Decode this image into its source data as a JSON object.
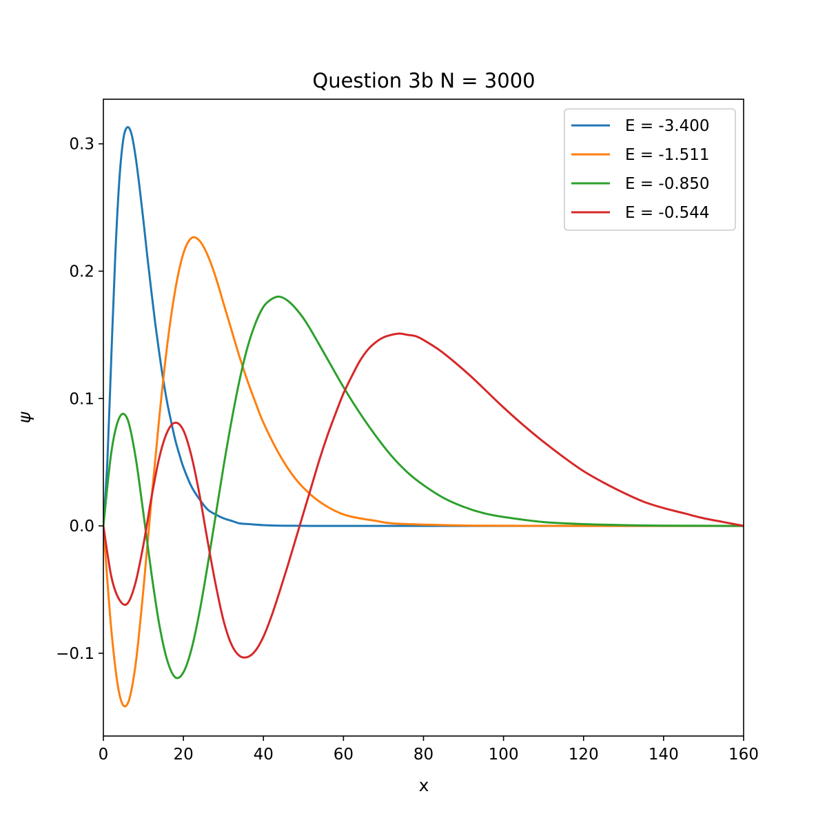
{
  "chart_data": {
    "type": "line",
    "title": "Question 3b N = 3000",
    "xlabel": "x",
    "ylabel": "ψ",
    "xlim": [
      0,
      160
    ],
    "ylim": [
      -0.165,
      0.335
    ],
    "xticks": [
      0,
      20,
      40,
      60,
      80,
      100,
      120,
      140,
      160
    ],
    "xtick_labels": [
      "0",
      "20",
      "40",
      "60",
      "80",
      "100",
      "120",
      "140",
      "160"
    ],
    "yticks": [
      -0.1,
      0.0,
      0.1,
      0.2,
      0.3
    ],
    "ytick_labels": [
      "−0.1",
      "0.0",
      "0.1",
      "0.2",
      "0.3"
    ],
    "grid": false,
    "legend_position": "top-right",
    "series": [
      {
        "name": "E = -3.400",
        "color": "#1f77b4",
        "x": [
          0,
          1,
          2,
          3,
          4,
          5,
          6,
          7,
          8,
          9,
          10,
          11,
          12,
          13,
          14,
          15,
          16,
          17,
          18,
          19,
          20,
          22,
          24,
          26,
          28,
          30,
          32,
          34,
          36,
          38,
          40,
          44,
          48,
          52,
          56,
          60,
          70,
          80,
          100,
          120,
          140,
          160
        ],
        "y": [
          0.0,
          0.051,
          0.134,
          0.214,
          0.272,
          0.304,
          0.313,
          0.308,
          0.291,
          0.267,
          0.24,
          0.211,
          0.184,
          0.158,
          0.135,
          0.114,
          0.096,
          0.081,
          0.067,
          0.056,
          0.046,
          0.031,
          0.021,
          0.013,
          0.009,
          0.006,
          0.004,
          0.002,
          0.0015,
          0.001,
          0.0006,
          0.0002,
          0.0001,
          0.0,
          0.0,
          0.0,
          0.0,
          0.0,
          0.0,
          0.0,
          0.0,
          0.0
        ]
      },
      {
        "name": "E = -1.511",
        "color": "#ff7f0e",
        "x": [
          0,
          2,
          4,
          6,
          8,
          10,
          12,
          14,
          16,
          18,
          20,
          22,
          24,
          26,
          28,
          30,
          32,
          34,
          36,
          38,
          40,
          44,
          48,
          52,
          56,
          60,
          64,
          68,
          72,
          80,
          90,
          100,
          120,
          140,
          160
        ],
        "y": [
          0.0,
          -0.082,
          -0.132,
          -0.14,
          -0.11,
          -0.05,
          0.02,
          0.086,
          0.143,
          0.186,
          0.214,
          0.226,
          0.224,
          0.213,
          0.196,
          0.175,
          0.154,
          0.133,
          0.114,
          0.097,
          0.081,
          0.056,
          0.037,
          0.024,
          0.015,
          0.009,
          0.006,
          0.004,
          0.002,
          0.001,
          0.0003,
          0.0001,
          0.0,
          0.0,
          0.0
        ]
      },
      {
        "name": "E = -0.850",
        "color": "#2ca02c",
        "x": [
          0,
          2,
          4,
          6,
          8,
          10,
          12,
          14,
          16,
          18,
          20,
          22,
          24,
          26,
          28,
          30,
          32,
          34,
          36,
          38,
          40,
          42,
          44,
          46,
          48,
          50,
          52,
          56,
          60,
          64,
          68,
          72,
          76,
          80,
          85,
          90,
          95,
          100,
          110,
          120,
          130,
          140,
          150,
          160
        ],
        "y": [
          0.0,
          0.058,
          0.085,
          0.084,
          0.055,
          0.01,
          -0.037,
          -0.078,
          -0.106,
          -0.119,
          -0.115,
          -0.097,
          -0.068,
          -0.032,
          0.007,
          0.046,
          0.082,
          0.114,
          0.14,
          0.159,
          0.172,
          0.178,
          0.18,
          0.177,
          0.171,
          0.163,
          0.153,
          0.131,
          0.109,
          0.089,
          0.071,
          0.055,
          0.042,
          0.032,
          0.022,
          0.015,
          0.01,
          0.007,
          0.003,
          0.0014,
          0.0006,
          0.0002,
          0.0001,
          0.0
        ]
      },
      {
        "name": "E = -0.544",
        "color": "#d62728",
        "x": [
          0,
          2,
          4,
          6,
          8,
          10,
          12,
          14,
          16,
          18,
          20,
          22,
          24,
          26,
          28,
          30,
          32,
          34,
          36,
          38,
          40,
          42,
          44,
          46,
          48,
          50,
          52,
          54,
          56,
          58,
          60,
          62,
          64,
          66,
          68,
          70,
          72,
          74,
          76,
          78,
          80,
          84,
          88,
          92,
          96,
          100,
          105,
          110,
          115,
          120,
          125,
          130,
          135,
          140,
          145,
          150,
          155,
          160
        ],
        "y": [
          0.0,
          -0.04,
          -0.058,
          -0.061,
          -0.045,
          -0.015,
          0.022,
          0.054,
          0.074,
          0.081,
          0.075,
          0.055,
          0.025,
          -0.011,
          -0.045,
          -0.074,
          -0.093,
          -0.102,
          -0.103,
          -0.098,
          -0.087,
          -0.071,
          -0.052,
          -0.032,
          -0.011,
          0.01,
          0.031,
          0.052,
          0.071,
          0.088,
          0.104,
          0.117,
          0.129,
          0.138,
          0.144,
          0.148,
          0.15,
          0.151,
          0.15,
          0.149,
          0.146,
          0.138,
          0.128,
          0.117,
          0.105,
          0.093,
          0.079,
          0.066,
          0.054,
          0.043,
          0.034,
          0.026,
          0.019,
          0.014,
          0.01,
          0.006,
          0.003,
          0.0
        ]
      }
    ]
  }
}
